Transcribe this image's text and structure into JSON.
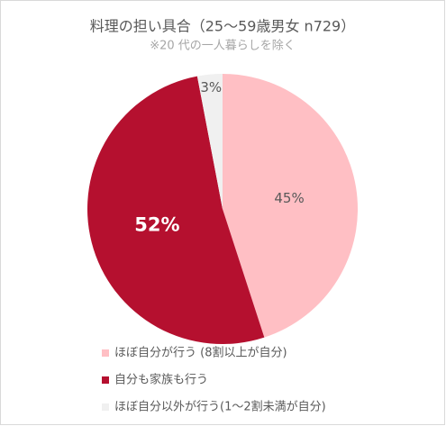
{
  "chart_data": {
    "type": "pie",
    "title": "料理の担い具合（25～59歳男女 n729）",
    "subtitle": "※20 代の一人暮らしを除く",
    "categories": [
      "ほぼ自分が行う (8割以上が自分)",
      "自分も家族も行う",
      "ほぼ自分以外が行う(1～2割未満が自分)"
    ],
    "values": [
      45,
      52,
      3
    ],
    "value_labels": [
      "45%",
      "52%",
      "3%"
    ],
    "colors": [
      "#ffbfc4",
      "#b5102f",
      "#f0f0f0"
    ],
    "legend": "bottom"
  }
}
